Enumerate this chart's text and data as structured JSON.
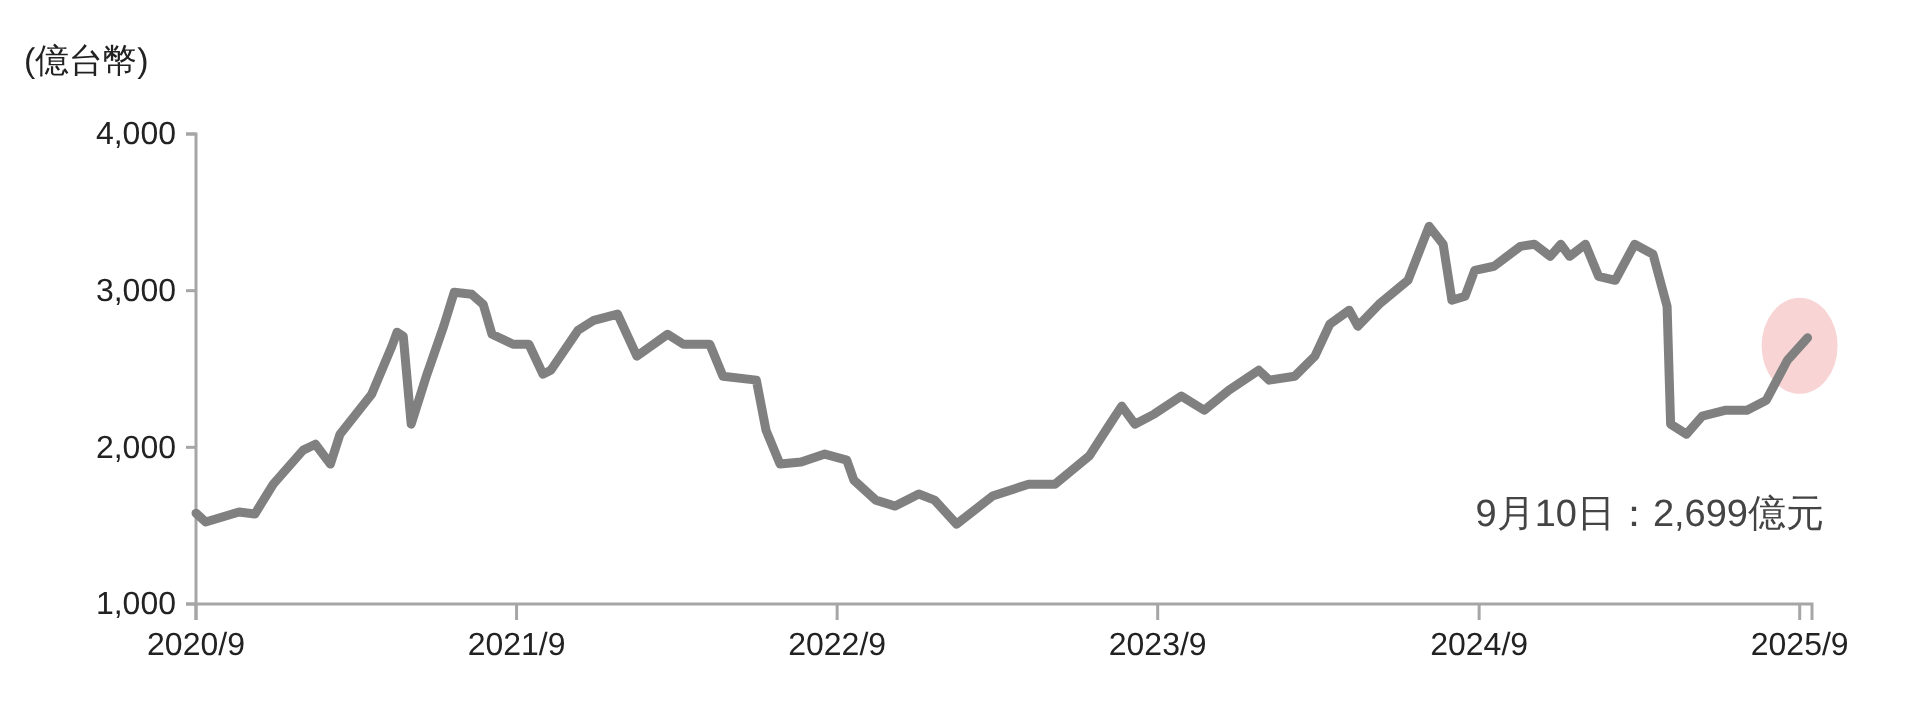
{
  "chart_data": {
    "type": "line",
    "ylabel": "(億台幣)",
    "annotations": [
      "9月10日：2,699億元"
    ],
    "xlim": [
      "2020-09-01",
      "2025-09-15"
    ],
    "xticks": [
      {
        "value": "2020-09-01",
        "label": "2020/9"
      },
      {
        "value": "2021-09-01",
        "label": "2021/9"
      },
      {
        "value": "2022-09-01",
        "label": "2022/9"
      },
      {
        "value": "2023-09-01",
        "label": "2023/9"
      },
      {
        "value": "2024-09-01",
        "label": "2024/9"
      },
      {
        "value": "2025-09-01",
        "label": "2025/9"
      }
    ],
    "ylim": [
      1000,
      4000
    ],
    "yticks": [
      {
        "value": 1000,
        "label": "1,000"
      },
      {
        "value": 2000,
        "label": "2,000"
      },
      {
        "value": 3000,
        "label": "3,000"
      },
      {
        "value": 4000,
        "label": "4,000"
      }
    ],
    "marker": "none",
    "line_style": "solid",
    "x": [
      "2020-09-01",
      "2020-09-12",
      "2020-10-20",
      "2020-11-07",
      "2020-11-28",
      "2021-01-01",
      "2021-01-15",
      "2021-02-01",
      "2021-02-12",
      "2021-03-20",
      "2021-04-12",
      "2021-04-18",
      "2021-04-25",
      "2021-05-04",
      "2021-05-22",
      "2021-06-10",
      "2021-06-22",
      "2021-07-12",
      "2021-07-25",
      "2021-08-04",
      "2021-08-28",
      "2021-09-15",
      "2021-10-01",
      "2021-10-10",
      "2021-11-10",
      "2021-11-28",
      "2021-12-25",
      "2022-01-16",
      "2022-02-20",
      "2022-03-10",
      "2022-04-09",
      "2022-04-24",
      "2022-06-01",
      "2022-06-12",
      "2022-06-28",
      "2022-07-22",
      "2022-08-18",
      "2022-09-12",
      "2022-09-20",
      "2022-10-15",
      "2022-11-06",
      "2022-12-03",
      "2022-12-21",
      "2023-01-15",
      "2023-02-25",
      "2023-04-07",
      "2023-05-07",
      "2023-06-15",
      "2023-07-07",
      "2023-07-22",
      "2023-08-06",
      "2023-08-28",
      "2023-09-28",
      "2023-10-24",
      "2023-11-21",
      "2023-12-25",
      "2024-01-06",
      "2024-02-04",
      "2024-02-27",
      "2024-03-15",
      "2024-04-06",
      "2024-04-16",
      "2024-05-10",
      "2024-06-12",
      "2024-07-06",
      "2024-07-22",
      "2024-08-01",
      "2024-08-16",
      "2024-08-27",
      "2024-09-18",
      "2024-10-18",
      "2024-11-03",
      "2024-11-21",
      "2024-12-03",
      "2024-12-13",
      "2024-12-31",
      "2025-01-15",
      "2025-02-03",
      "2025-02-25",
      "2025-03-18",
      "2025-04-03",
      "2025-04-07",
      "2025-04-25",
      "2025-05-13",
      "2025-06-09",
      "2025-07-03",
      "2025-07-25",
      "2025-08-18",
      "2025-09-10"
    ],
    "series": [
      {
        "color": "#808080",
        "values": [
          1580,
          1523,
          1587,
          1574,
          1765,
          1982,
          2020,
          1893,
          2084,
          2339,
          2645,
          2735,
          2709,
          2148,
          2467,
          2773,
          2990,
          2977,
          2913,
          2722,
          2658,
          2658,
          2467,
          2492,
          2747,
          2811,
          2850,
          2582,
          2722,
          2658,
          2658,
          2454,
          2429,
          2110,
          1893,
          1906,
          1957,
          1918,
          1791,
          1663,
          1625,
          1702,
          1663,
          1510,
          1689,
          1765,
          1765,
          1944,
          2135,
          2263,
          2148,
          2212,
          2327,
          2237,
          2365,
          2492,
          2429,
          2454,
          2582,
          2786,
          2875,
          2773,
          2913,
          3066,
          3411,
          3296,
          2939,
          2964,
          3130,
          3156,
          3283,
          3296,
          3219,
          3296,
          3219,
          3296,
          3092,
          3066,
          3296,
          3232,
          2900,
          2148,
          2084,
          2199,
          2237,
          2237,
          2301,
          2556,
          2699
        ]
      }
    ]
  }
}
